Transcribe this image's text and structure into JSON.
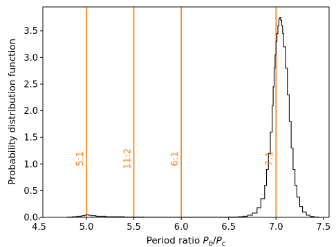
{
  "chart_data": {
    "type": "line",
    "drawstyle": "steps",
    "title": "",
    "xlabel": "Period ratio P_b/P_c",
    "xlabel_parts": [
      "Period ratio ",
      "P",
      "b",
      "/",
      "P",
      "c"
    ],
    "ylabel": "Probability distribution function",
    "xlim": [
      4.54,
      7.56
    ],
    "ylim": [
      0.0,
      3.95
    ],
    "xticks": [
      4.5,
      5.0,
      5.5,
      6.0,
      6.5,
      7.0,
      7.5
    ],
    "xtick_labels": [
      "4.5",
      "5.0",
      "5.5",
      "6.0",
      "6.5",
      "7.0",
      "7.5"
    ],
    "yticks": [
      0.0,
      0.5,
      1.0,
      1.5,
      2.0,
      2.5,
      3.0,
      3.5
    ],
    "ytick_labels": [
      "0.0",
      "0.5",
      "1.0",
      "1.5",
      "2.0",
      "2.5",
      "3.0",
      "3.5"
    ],
    "grid": false,
    "colors": {
      "series": "#000000",
      "resonance": "#ff7f0e"
    },
    "series": [
      {
        "x": [
          4.6,
          4.7,
          4.8,
          4.85,
          4.9,
          4.95,
          4.98,
          5.0,
          5.02,
          5.05,
          5.1,
          5.2,
          5.4,
          5.6,
          5.8,
          6.0,
          6.2,
          6.4,
          6.5,
          6.6,
          6.65,
          6.7,
          6.75,
          6.8,
          6.84,
          6.88,
          6.9,
          6.92,
          6.94,
          6.96,
          6.97,
          6.98,
          6.99,
          7.0,
          7.01,
          7.02,
          7.03,
          7.04,
          7.05,
          7.06,
          7.07,
          7.08,
          7.1,
          7.12,
          7.14,
          7.16,
          7.18,
          7.2,
          7.22,
          7.25,
          7.28,
          7.32,
          7.36,
          7.4,
          7.45
        ],
        "y": [
          0.0,
          0.0,
          0.005,
          0.01,
          0.02,
          0.03,
          0.04,
          0.05,
          0.04,
          0.03,
          0.02,
          0.01,
          0.005,
          0.003,
          0.002,
          0.002,
          0.002,
          0.003,
          0.005,
          0.01,
          0.02,
          0.04,
          0.08,
          0.18,
          0.35,
          0.6,
          0.9,
          1.2,
          1.6,
          2.1,
          2.45,
          2.8,
          3.05,
          3.3,
          3.45,
          3.6,
          3.72,
          3.75,
          3.7,
          3.6,
          3.45,
          3.2,
          2.8,
          2.3,
          1.8,
          1.3,
          0.9,
          0.6,
          0.38,
          0.2,
          0.1,
          0.04,
          0.015,
          0.005,
          0.0
        ]
      }
    ],
    "resonances": [
      {
        "x": 5.0,
        "label": "5:1"
      },
      {
        "x": 5.5,
        "label": "11:2"
      },
      {
        "x": 6.0,
        "label": "6:1"
      },
      {
        "x": 7.0,
        "label": "7:1"
      }
    ]
  }
}
